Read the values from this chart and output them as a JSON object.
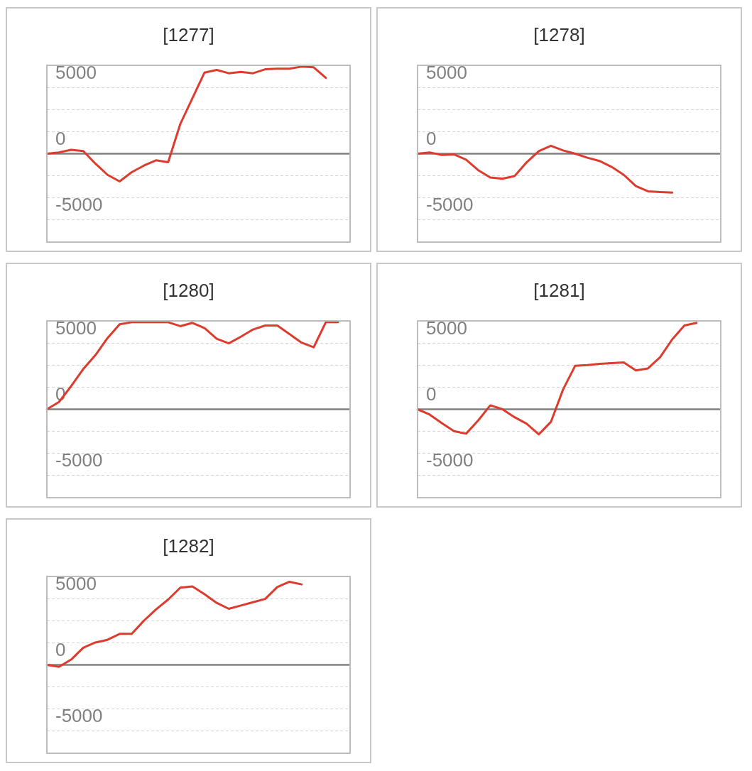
{
  "chart_data": [
    {
      "type": "line",
      "title": "[1277]",
      "categories": [
        null,
        null,
        null,
        null,
        null,
        null,
        null,
        null,
        null,
        null,
        null,
        null,
        null,
        null,
        null,
        null,
        null,
        null,
        null,
        null,
        null,
        null,
        null,
        null,
        null,
        null
      ],
      "values": [
        0,
        100,
        300,
        200,
        -750,
        -1600,
        -2100,
        -1400,
        -900,
        -500,
        -650,
        2250,
        4200,
        6150,
        6350,
        6100,
        6200,
        6100,
        6400,
        6450,
        6450,
        6600,
        6550,
        5750,
        null,
        null
      ],
      "color": "#dc3b2e",
      "ylim": [
        -6700,
        6700
      ],
      "yticks": [
        {
          "value": -5000,
          "label": "-5000"
        },
        {
          "value": -3333,
          "label": null
        },
        {
          "value": -1667,
          "label": null
        },
        {
          "value": 0,
          "label": "0"
        },
        {
          "value": 1667,
          "label": null
        },
        {
          "value": 3333,
          "label": null
        },
        {
          "value": 5000,
          "label": "5000"
        }
      ],
      "grid": true,
      "marker": "none",
      "ref_lines": [
        {
          "axis": "y",
          "value": 0,
          "color": "#808080"
        }
      ],
      "tick_labels": "y"
    },
    {
      "type": "line",
      "title": "[1278]",
      "categories": [
        null,
        null,
        null,
        null,
        null,
        null,
        null,
        null,
        null,
        null,
        null,
        null,
        null,
        null,
        null,
        null,
        null,
        null,
        null,
        null,
        null,
        null,
        null,
        null,
        null,
        null
      ],
      "values": [
        0,
        100,
        -100,
        -50,
        -450,
        -1250,
        -1800,
        -1900,
        -1700,
        -650,
        200,
        600,
        250,
        0,
        -300,
        -550,
        -1000,
        -1600,
        -2450,
        -2850,
        -2900,
        -2950,
        null,
        null,
        null,
        null
      ],
      "color": "#dc3b2e",
      "ylim": [
        -6700,
        6700
      ],
      "yticks": [
        {
          "value": -5000,
          "label": "-5000"
        },
        {
          "value": -3333,
          "label": null
        },
        {
          "value": -1667,
          "label": null
        },
        {
          "value": 0,
          "label": "0"
        },
        {
          "value": 1667,
          "label": null
        },
        {
          "value": 3333,
          "label": null
        },
        {
          "value": 5000,
          "label": "5000"
        }
      ],
      "grid": true,
      "marker": "none",
      "ref_lines": [
        {
          "axis": "y",
          "value": 0,
          "color": "#808080"
        }
      ],
      "tick_labels": "y"
    },
    {
      "type": "line",
      "title": "[1280]",
      "categories": [
        null,
        null,
        null,
        null,
        null,
        null,
        null,
        null,
        null,
        null,
        null,
        null,
        null,
        null,
        null,
        null,
        null,
        null,
        null,
        null,
        null,
        null,
        null,
        null,
        null,
        null
      ],
      "values": [
        0,
        550,
        1750,
        3050,
        4100,
        5400,
        6450,
        6600,
        6600,
        6600,
        6600,
        6300,
        6550,
        6150,
        5350,
        5000,
        5500,
        6050,
        6350,
        6350,
        5700,
        5050,
        4700,
        6600,
        6600,
        null
      ],
      "color": "#dc3b2e",
      "ylim": [
        -6700,
        6700
      ],
      "yticks": [
        {
          "value": -5000,
          "label": "-5000"
        },
        {
          "value": -3333,
          "label": null
        },
        {
          "value": -1667,
          "label": null
        },
        {
          "value": 0,
          "label": "0"
        },
        {
          "value": 1667,
          "label": null
        },
        {
          "value": 3333,
          "label": null
        },
        {
          "value": 5000,
          "label": "5000"
        }
      ],
      "grid": true,
      "marker": "none",
      "ref_lines": [
        {
          "axis": "y",
          "value": 0,
          "color": "#808080"
        }
      ],
      "tick_labels": "y"
    },
    {
      "type": "line",
      "title": "[1281]",
      "categories": [
        null,
        null,
        null,
        null,
        null,
        null,
        null,
        null,
        null,
        null,
        null,
        null,
        null,
        null,
        null,
        null,
        null,
        null,
        null,
        null,
        null,
        null,
        null,
        null,
        null,
        null
      ],
      "values": [
        0,
        -400,
        -1050,
        -1650,
        -1850,
        -850,
        300,
        0,
        -600,
        -1100,
        -1900,
        -950,
        1500,
        3300,
        3350,
        3450,
        3500,
        3550,
        2950,
        3100,
        3950,
        5300,
        6350,
        6550,
        null,
        null
      ],
      "color": "#dc3b2e",
      "ylim": [
        -6700,
        6700
      ],
      "yticks": [
        {
          "value": -5000,
          "label": "-5000"
        },
        {
          "value": -3333,
          "label": null
        },
        {
          "value": -1667,
          "label": null
        },
        {
          "value": 0,
          "label": "0"
        },
        {
          "value": 1667,
          "label": null
        },
        {
          "value": 3333,
          "label": null
        },
        {
          "value": 5000,
          "label": "5000"
        }
      ],
      "grid": true,
      "marker": "none",
      "ref_lines": [
        {
          "axis": "y",
          "value": 0,
          "color": "#808080"
        }
      ],
      "tick_labels": "y"
    },
    {
      "type": "line",
      "title": "[1282]",
      "categories": [
        null,
        null,
        null,
        null,
        null,
        null,
        null,
        null,
        null,
        null,
        null,
        null,
        null,
        null,
        null,
        null,
        null,
        null,
        null,
        null,
        null,
        null,
        null,
        null,
        null,
        null
      ],
      "values": [
        0,
        -150,
        400,
        1300,
        1700,
        1900,
        2350,
        2350,
        3350,
        4200,
        4950,
        5850,
        5950,
        5350,
        4700,
        4250,
        4500,
        4750,
        5000,
        5900,
        6300,
        6100,
        null,
        null,
        null,
        null
      ],
      "color": "#dc3b2e",
      "ylim": [
        -6700,
        6700
      ],
      "yticks": [
        {
          "value": -5000,
          "label": "-5000"
        },
        {
          "value": -3333,
          "label": null
        },
        {
          "value": -1667,
          "label": null
        },
        {
          "value": 0,
          "label": "0"
        },
        {
          "value": 1667,
          "label": null
        },
        {
          "value": 3333,
          "label": null
        },
        {
          "value": 5000,
          "label": "5000"
        }
      ],
      "grid": true,
      "marker": "none",
      "ref_lines": [
        {
          "axis": "y",
          "value": 0,
          "color": "#808080"
        }
      ],
      "tick_labels": "y"
    }
  ]
}
